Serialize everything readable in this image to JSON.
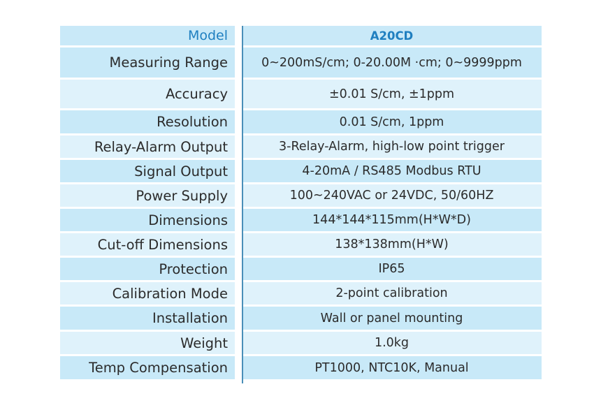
{
  "header": {
    "label": "Model",
    "value": "A20CD"
  },
  "rows": [
    {
      "label": "Measuring Range",
      "value": "0~200mS/cm; 0-20.00M ·cm; 0~9999ppm"
    },
    {
      "label": "Accuracy",
      "value": "±0.01 S/cm, ±1ppm"
    },
    {
      "label": "Resolution",
      "value": "0.01 S/cm, 1ppm"
    },
    {
      "label": "Relay-Alarm Output",
      "value": "3-Relay-Alarm, high-low point trigger"
    },
    {
      "label": "Signal Output",
      "value": "4-20mA / RS485 Modbus RTU"
    },
    {
      "label": "Power Supply",
      "value": "100~240VAC or 24VDC, 50/60HZ"
    },
    {
      "label": "Dimensions",
      "value": "144*144*115mm(H*W*D)"
    },
    {
      "label": "Cut-off Dimensions",
      "value": "138*138mm(H*W)"
    },
    {
      "label": "Protection",
      "value": "IP65"
    },
    {
      "label": "Calibration Mode",
      "value": "2-point calibration"
    },
    {
      "label": "Installation",
      "value": "Wall or panel mounting"
    },
    {
      "label": "Weight",
      "value": "1.0kg"
    },
    {
      "label": "Temp Compensation",
      "value": "PT1000, NTC10K, Manual"
    }
  ],
  "colors": {
    "header_text": "#1f7fc0",
    "row_light": "#dff2fb",
    "row_dark": "#c8e9f8",
    "divider": "#4a8fb8"
  }
}
